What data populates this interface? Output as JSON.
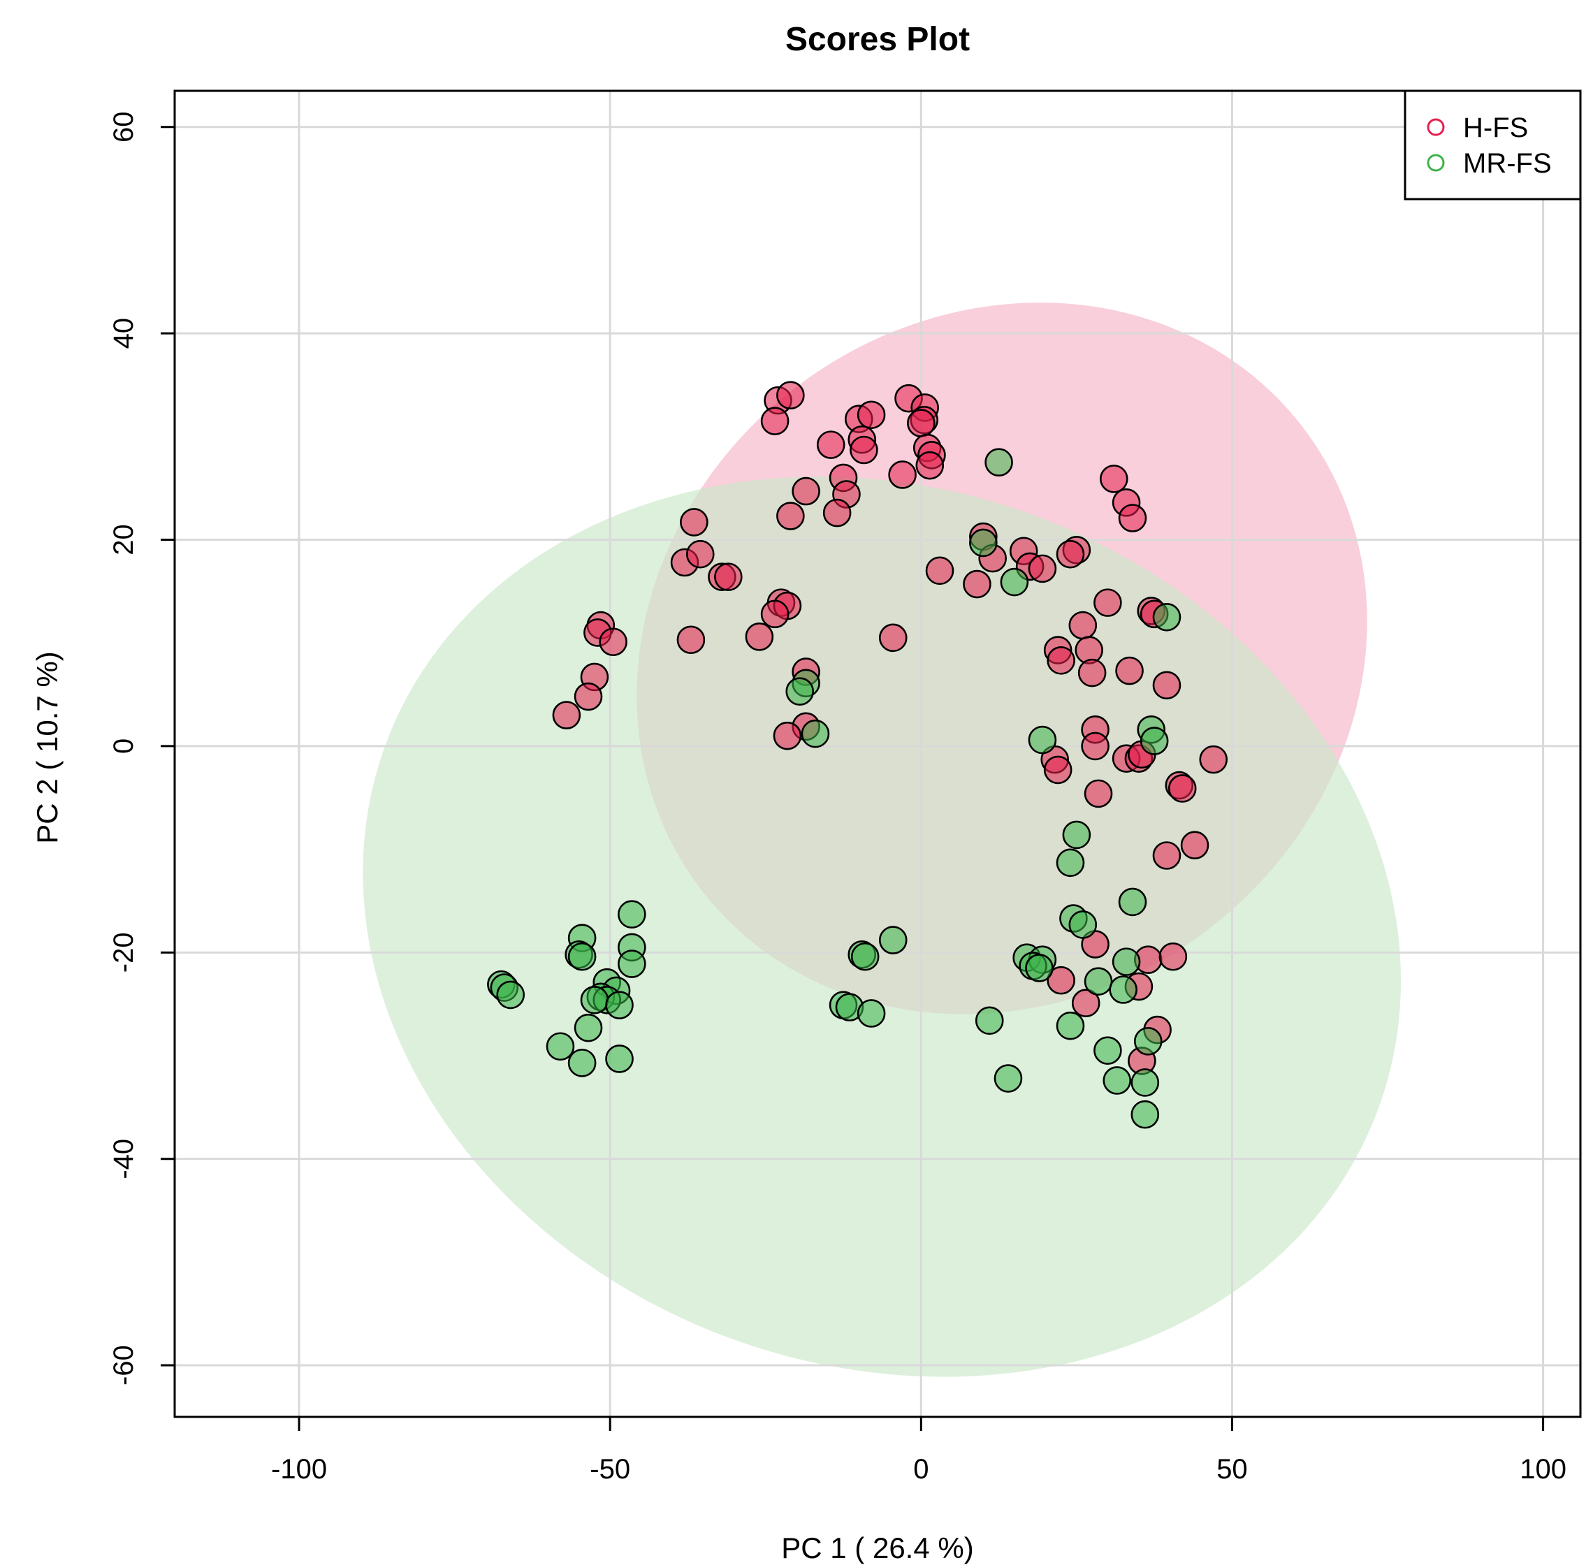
{
  "chart_data": {
    "type": "scatter",
    "title": "Scores Plot",
    "xlabel": "PC 1 ( 26.4 %)",
    "ylabel": "PC 2 ( 10.7 %)",
    "xlim": [
      -120,
      106
    ],
    "ylim": [
      -65,
      63.5
    ],
    "grid": true,
    "x_ticks": [
      -100,
      -50,
      0,
      50,
      100
    ],
    "y_ticks": [
      -60,
      -40,
      -20,
      0,
      20,
      40,
      60
    ],
    "legend_position": "top-right",
    "legend": [
      {
        "label": "H-FS",
        "color": "#e5204f"
      },
      {
        "label": "MR-FS",
        "color": "#3cb44b"
      }
    ],
    "ellipses": [
      {
        "series": "H-FS",
        "center": [
          13,
          8.5
        ],
        "semi_axes": [
          61.0,
          33.0
        ],
        "angle_deg": -38,
        "color": "#f4b6c6"
      },
      {
        "series": "MR-FS",
        "center": [
          -6.3,
          -17.5
        ],
        "semi_axes": [
          85.0,
          42.5
        ],
        "angle_deg": 20,
        "color": "#c9e8c9"
      }
    ],
    "series": [
      {
        "name": "H-FS",
        "color": "#e5204f",
        "points": [
          [
            -23,
            33.5
          ],
          [
            -21,
            34
          ],
          [
            -23.5,
            31.5
          ],
          [
            -21,
            22.3
          ],
          [
            -18.5,
            24.7
          ],
          [
            -14.5,
            29.2
          ],
          [
            -12.5,
            26
          ],
          [
            -12,
            24.4
          ],
          [
            -13.5,
            22.6
          ],
          [
            -10,
            31.7
          ],
          [
            -8,
            32.1
          ],
          [
            -9.5,
            29.7
          ],
          [
            -9.2,
            28.7
          ],
          [
            -2,
            33.7
          ],
          [
            0.6,
            32.8
          ],
          [
            0.5,
            31.6
          ],
          [
            0,
            31.3
          ],
          [
            1,
            28.9
          ],
          [
            1.7,
            28.2
          ],
          [
            1.4,
            27.2
          ],
          [
            -3,
            26.3
          ],
          [
            -36.5,
            21.7
          ],
          [
            -38,
            17.8
          ],
          [
            -35.5,
            18.6
          ],
          [
            -32,
            16.4
          ],
          [
            -31,
            16.4
          ],
          [
            -22.5,
            13.9
          ],
          [
            -21.5,
            13.6
          ],
          [
            -23.5,
            12.8
          ],
          [
            -51.5,
            11.7
          ],
          [
            -52,
            11
          ],
          [
            -49.5,
            10.1
          ],
          [
            -37,
            10.3
          ],
          [
            -26,
            10.6
          ],
          [
            -4.5,
            10.5
          ],
          [
            -52.5,
            6.7
          ],
          [
            -53.5,
            4.8
          ],
          [
            -57,
            3
          ],
          [
            -18.5,
            7.2
          ],
          [
            -18.5,
            1.9
          ],
          [
            -21.5,
            1
          ],
          [
            3,
            17
          ],
          [
            10,
            20.3
          ],
          [
            11.5,
            18.2
          ],
          [
            16.5,
            18.9
          ],
          [
            17.5,
            17.4
          ],
          [
            19.5,
            17.2
          ],
          [
            25,
            19
          ],
          [
            9,
            15.7
          ],
          [
            24,
            18.6
          ],
          [
            31,
            25.9
          ],
          [
            33,
            23.6
          ],
          [
            34,
            22.1
          ],
          [
            30,
            13.9
          ],
          [
            37,
            13.1
          ],
          [
            37.5,
            12.8
          ],
          [
            26,
            11.7
          ],
          [
            22,
            9.3
          ],
          [
            27,
            9.3
          ],
          [
            22.5,
            8.3
          ],
          [
            27.5,
            7.1
          ],
          [
            33.5,
            7.3
          ],
          [
            39.5,
            5.9
          ],
          [
            28,
            1.6
          ],
          [
            21.5,
            -1.3
          ],
          [
            22,
            -2.3
          ],
          [
            28,
            0
          ],
          [
            33,
            -1.2
          ],
          [
            35,
            -1.2
          ],
          [
            35.5,
            -0.8
          ],
          [
            47,
            -1.3
          ],
          [
            28.5,
            -4.6
          ],
          [
            41.5,
            -3.8
          ],
          [
            42,
            -4.1
          ],
          [
            39.5,
            -10.6
          ],
          [
            44,
            -9.6
          ],
          [
            28,
            -19.2
          ],
          [
            36.5,
            -20.7
          ],
          [
            40.5,
            -20.4
          ],
          [
            35,
            -23.3
          ],
          [
            22.5,
            -22.7
          ],
          [
            26.5,
            -24.9
          ],
          [
            38,
            -27.5
          ],
          [
            35.5,
            -30.5
          ]
        ]
      },
      {
        "name": "MR-FS",
        "color": "#3cb44b",
        "points": [
          [
            12.5,
            27.5
          ],
          [
            10,
            19.7
          ],
          [
            15,
            15.9
          ],
          [
            39.5,
            12.5
          ],
          [
            -18.5,
            6.1
          ],
          [
            -19.5,
            5.3
          ],
          [
            -17,
            1.2
          ],
          [
            19.5,
            0.6
          ],
          [
            37,
            1.6
          ],
          [
            37.5,
            0.5
          ],
          [
            25,
            -8.6
          ],
          [
            24,
            -11.3
          ],
          [
            34,
            -15.1
          ],
          [
            24.5,
            -16.7
          ],
          [
            26,
            -17.3
          ],
          [
            -4.5,
            -18.8
          ],
          [
            -9.5,
            -20.2
          ],
          [
            -9,
            -20.4
          ],
          [
            17,
            -20.5
          ],
          [
            19.5,
            -20.7
          ],
          [
            18,
            -21.3
          ],
          [
            19,
            -21.5
          ],
          [
            33,
            -20.9
          ],
          [
            28.5,
            -22.8
          ],
          [
            32.5,
            -23.6
          ],
          [
            11,
            -26.6
          ],
          [
            24,
            -27.1
          ],
          [
            30,
            -29.5
          ],
          [
            36.5,
            -28.6
          ],
          [
            31.5,
            -32.4
          ],
          [
            36,
            -32.6
          ],
          [
            14,
            -32.2
          ],
          [
            36,
            -35.7
          ],
          [
            -12.5,
            -25.1
          ],
          [
            -11.5,
            -25.3
          ],
          [
            -8,
            -25.9
          ],
          [
            -46.5,
            -16.3
          ],
          [
            -54.5,
            -18.6
          ],
          [
            -55,
            -20.2
          ],
          [
            -54.5,
            -20.4
          ],
          [
            -46.5,
            -19.5
          ],
          [
            -46.5,
            -21.1
          ],
          [
            -67.5,
            -23.1
          ],
          [
            -67,
            -23.4
          ],
          [
            -66,
            -24.1
          ],
          [
            -50.5,
            -22.9
          ],
          [
            -49,
            -23.7
          ],
          [
            -51.5,
            -24.3
          ],
          [
            -50.5,
            -24.6
          ],
          [
            -52.5,
            -24.6
          ],
          [
            -48.5,
            -25.1
          ],
          [
            -53.5,
            -27.3
          ],
          [
            -58,
            -29.1
          ],
          [
            -54.5,
            -30.7
          ],
          [
            -48.5,
            -30.3
          ]
        ]
      }
    ]
  }
}
